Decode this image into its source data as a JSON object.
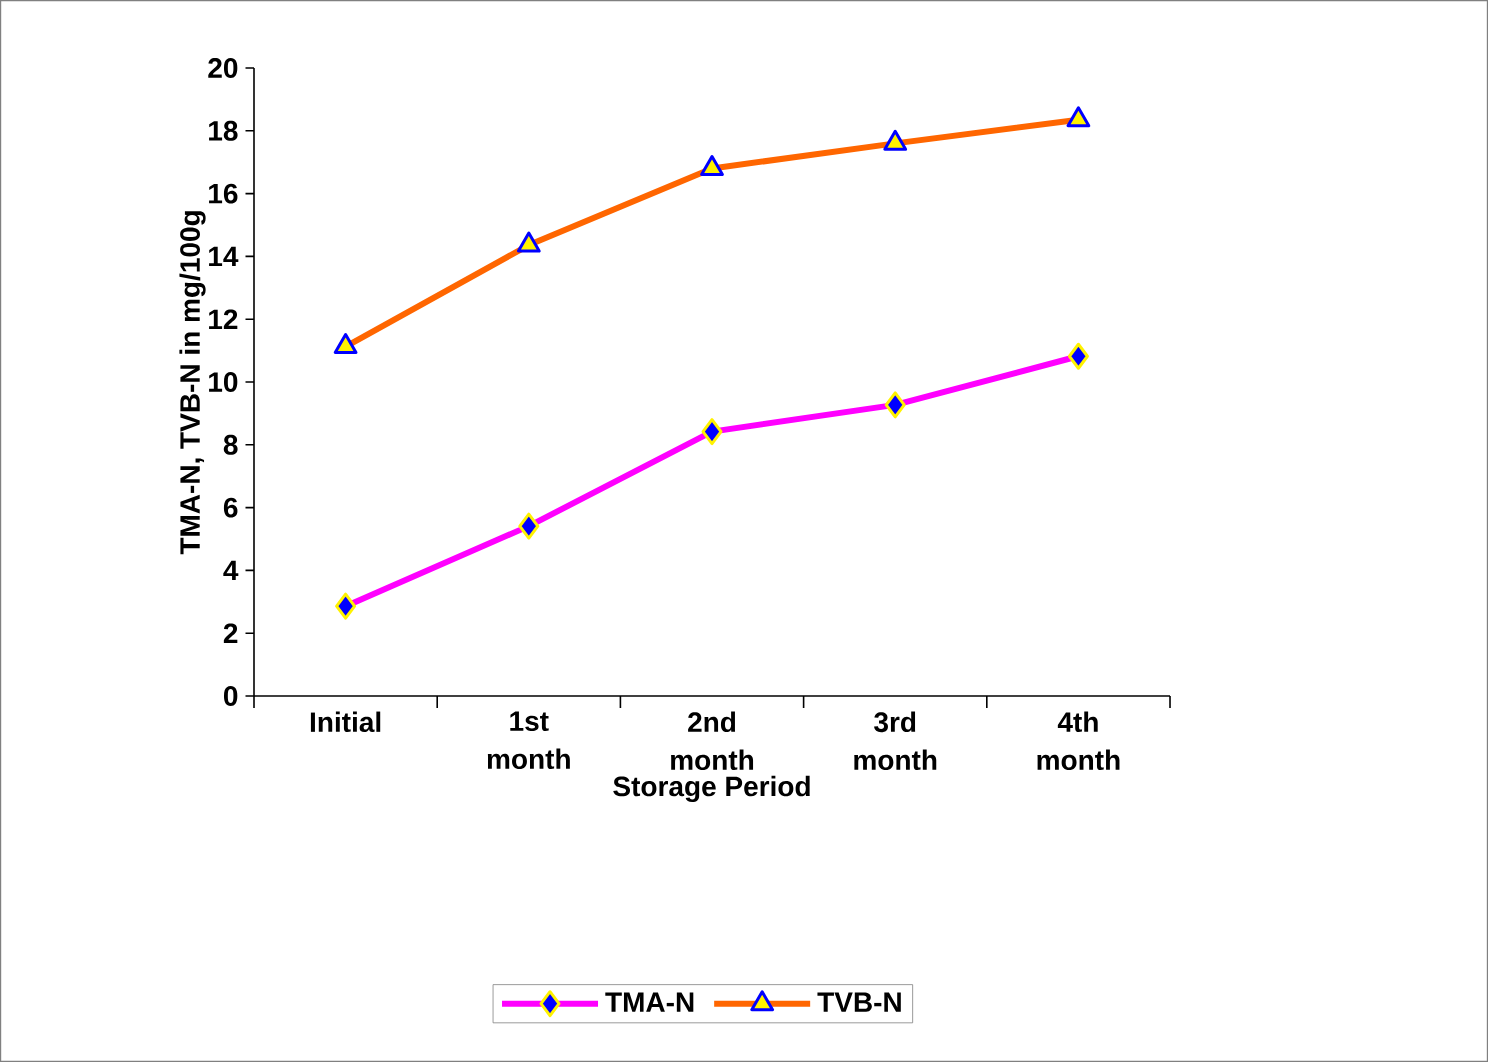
{
  "chart_data": {
    "type": "line",
    "xlabel": "Storage Period",
    "ylabel": "TMA-N, TVB-N in mg/100g",
    "categories": [
      "Initial",
      "1st month",
      "2nd month",
      "3rd month",
      "4th month"
    ],
    "series": [
      {
        "name": "TMA-N",
        "color": "#ff00ff",
        "marker": "diamond",
        "values": [
          2.86,
          5.41,
          8.42,
          9.27,
          10.82
        ]
      },
      {
        "name": "TVB-N",
        "color": "#ff6600",
        "marker": "triangle",
        "values": [
          11.13,
          14.36,
          16.8,
          17.6,
          18.35
        ]
      }
    ],
    "ylim": [
      0,
      20
    ],
    "yticks": [
      0,
      2,
      4,
      6,
      8,
      10,
      12,
      14,
      16,
      18,
      20
    ],
    "grid": false,
    "legend": "bottom",
    "line_style": "solid"
  }
}
